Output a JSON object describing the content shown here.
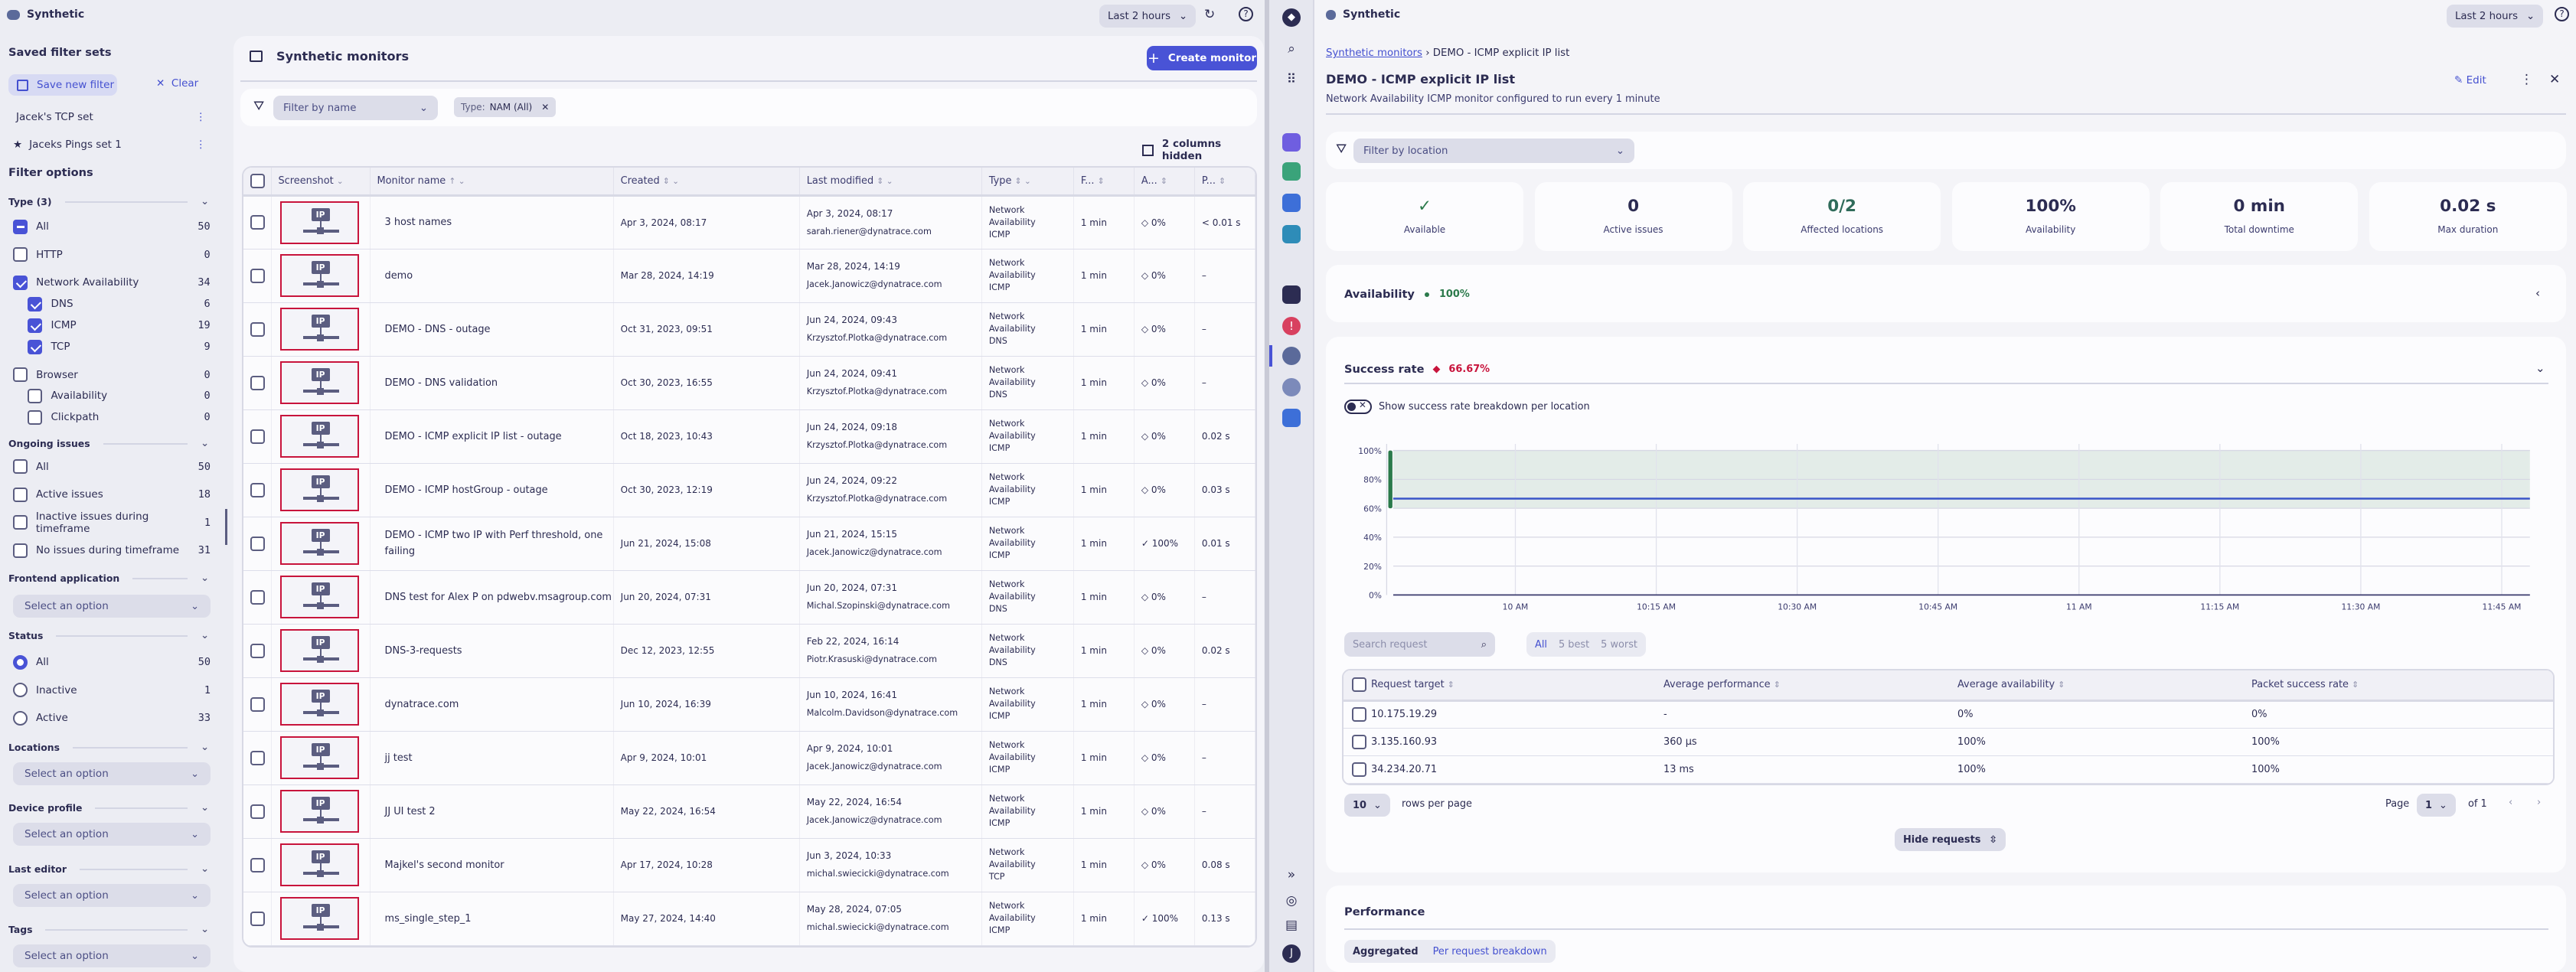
{
  "left_app": {
    "app_name": "Synthetic",
    "timeframe": "Last 2 hours",
    "sidebar": {
      "saved_title": "Saved filter sets",
      "save_new": "Save new filter",
      "clear": "Clear",
      "saved_sets": [
        {
          "label": "Jacek's TCP set",
          "starred": false
        },
        {
          "label": "Jaceks Pings set 1",
          "starred": true
        }
      ],
      "filter_options_title": "Filter options",
      "type_section": "Type (3)",
      "type_items": [
        {
          "label": "All",
          "count": "50",
          "state": "ind",
          "indent": 0
        },
        {
          "label": "HTTP",
          "count": "0",
          "state": "",
          "indent": 0
        },
        {
          "label": "Network Availability",
          "count": "34",
          "state": "on",
          "indent": 0
        },
        {
          "label": "DNS",
          "count": "6",
          "state": "on",
          "indent": 1
        },
        {
          "label": "ICMP",
          "count": "19",
          "state": "on",
          "indent": 1
        },
        {
          "label": "TCP",
          "count": "9",
          "state": "on",
          "indent": 1
        },
        {
          "label": "Browser",
          "count": "0",
          "state": "",
          "indent": 0
        },
        {
          "label": "Availability",
          "count": "0",
          "state": "",
          "indent": 1
        },
        {
          "label": "Clickpath",
          "count": "0",
          "state": "",
          "indent": 1
        }
      ],
      "issues_section": "Ongoing issues",
      "issue_items": [
        {
          "label": "All",
          "count": "50"
        },
        {
          "label": "Active issues",
          "count": "18"
        },
        {
          "label": "Inactive issues during timeframe",
          "count": "1"
        },
        {
          "label": "No issues during timeframe",
          "count": "31"
        }
      ],
      "frontend_section": "Frontend application",
      "select_placeholder": "Select an option",
      "status_section": "Status",
      "status_items": [
        {
          "label": "All",
          "count": "50",
          "selected": true
        },
        {
          "label": "Inactive",
          "count": "1",
          "selected": false
        },
        {
          "label": "Active",
          "count": "33",
          "selected": false
        }
      ],
      "locations_section": "Locations",
      "device_section": "Device profile",
      "editor_section": "Last editor",
      "tags_section": "Tags"
    },
    "main": {
      "title": "Synthetic monitors",
      "create_button": "Create monitor",
      "filter_placeholder": "Filter by name",
      "filter_chip_key": "Type:",
      "filter_chip_value": "NAM (All)",
      "columns_hidden": "2 columns hidden",
      "columns": [
        "Screenshot",
        "Monitor name",
        "Created",
        "Last modified",
        "Type",
        "F...",
        "A...",
        "P..."
      ],
      "rows": [
        {
          "name": "3 host names",
          "created": "Apr 3, 2024, 08:17",
          "modified": "Apr 3, 2024, 08:17",
          "editor": "sarah.riener@dynatrace.com",
          "type": [
            "Network",
            "Availability",
            "ICMP"
          ],
          "freq": "1 min",
          "avail": "0%",
          "avail_ok": false,
          "perf": "< 0.01 s"
        },
        {
          "name": "demo",
          "created": "Mar 28, 2024, 14:19",
          "modified": "Mar 28, 2024, 14:19",
          "editor": "Jacek.Janowicz@dynatrace.com",
          "type": [
            "Network",
            "Availability",
            "ICMP"
          ],
          "freq": "1 min",
          "avail": "0%",
          "avail_ok": false,
          "perf": "–"
        },
        {
          "name": "DEMO - DNS - outage",
          "created": "Oct 31, 2023, 09:51",
          "modified": "Jun 24, 2024, 09:43",
          "editor": "Krzysztof.Plotka@dynatrace.com",
          "type": [
            "Network",
            "Availability",
            "DNS"
          ],
          "freq": "1 min",
          "avail": "0%",
          "avail_ok": false,
          "perf": "–"
        },
        {
          "name": "DEMO - DNS validation",
          "created": "Oct 30, 2023, 16:55",
          "modified": "Jun 24, 2024, 09:41",
          "editor": "Krzysztof.Plotka@dynatrace.com",
          "type": [
            "Network",
            "Availability",
            "DNS"
          ],
          "freq": "1 min",
          "avail": "0%",
          "avail_ok": false,
          "perf": "–"
        },
        {
          "name": "DEMO - ICMP explicit IP list - outage",
          "created": "Oct 18, 2023, 10:43",
          "modified": "Jun 24, 2024, 09:18",
          "editor": "Krzysztof.Plotka@dynatrace.com",
          "type": [
            "Network",
            "Availability",
            "ICMP"
          ],
          "freq": "1 min",
          "avail": "0%",
          "avail_ok": false,
          "perf": "0.02 s"
        },
        {
          "name": "DEMO - ICMP hostGroup - outage",
          "created": "Oct 30, 2023, 12:19",
          "modified": "Jun 24, 2024, 09:22",
          "editor": "Krzysztof.Plotka@dynatrace.com",
          "type": [
            "Network",
            "Availability",
            "ICMP"
          ],
          "freq": "1 min",
          "avail": "0%",
          "avail_ok": false,
          "perf": "0.03 s"
        },
        {
          "name": "DEMO - ICMP two IP with Perf threshold, one failing",
          "created": "Jun 21, 2024, 15:08",
          "modified": "Jun 21, 2024, 15:15",
          "editor": "Jacek.Janowicz@dynatrace.com",
          "type": [
            "Network",
            "Availability",
            "ICMP"
          ],
          "freq": "1 min",
          "avail": "100%",
          "avail_ok": true,
          "perf": "0.01 s"
        },
        {
          "name": "DNS test for Alex P on pdwebv.msagroup.com",
          "created": "Jun 20, 2024, 07:31",
          "modified": "Jun 20, 2024, 07:31",
          "editor": "Michal.Szopinski@dynatrace.com",
          "type": [
            "Network",
            "Availability",
            "DNS"
          ],
          "freq": "1 min",
          "avail": "0%",
          "avail_ok": false,
          "perf": "–"
        },
        {
          "name": "DNS-3-requests",
          "created": "Dec 12, 2023, 12:55",
          "modified": "Feb 22, 2024, 16:14",
          "editor": "Piotr.Krasuski@dynatrace.com",
          "type": [
            "Network",
            "Availability",
            "DNS"
          ],
          "freq": "1 min",
          "avail": "0%",
          "avail_ok": false,
          "perf": "0.02 s"
        },
        {
          "name": "dynatrace.com",
          "created": "Jun 10, 2024, 16:39",
          "modified": "Jun 10, 2024, 16:41",
          "editor": "Malcolm.Davidson@dynatrace.com",
          "type": [
            "Network",
            "Availability",
            "ICMP"
          ],
          "freq": "1 min",
          "avail": "0%",
          "avail_ok": false,
          "perf": "–"
        },
        {
          "name": "jj test",
          "created": "Apr 9, 2024, 10:01",
          "modified": "Apr 9, 2024, 10:01",
          "editor": "Jacek.Janowicz@dynatrace.com",
          "type": [
            "Network",
            "Availability",
            "ICMP"
          ],
          "freq": "1 min",
          "avail": "0%",
          "avail_ok": false,
          "perf": "–"
        },
        {
          "name": "JJ UI test 2",
          "created": "May 22, 2024, 16:54",
          "modified": "May 22, 2024, 16:54",
          "editor": "Jacek.Janowicz@dynatrace.com",
          "type": [
            "Network",
            "Availability",
            "ICMP"
          ],
          "freq": "1 min",
          "avail": "0%",
          "avail_ok": false,
          "perf": "–"
        },
        {
          "name": "Majkel's second monitor",
          "created": "Apr 17, 2024, 10:28",
          "modified": "Jun 3, 2024, 10:33",
          "editor": "michal.swiecicki@dynatrace.com",
          "type": [
            "Network",
            "Availability",
            "TCP"
          ],
          "freq": "1 min",
          "avail": "0%",
          "avail_ok": false,
          "perf": "0.08 s"
        },
        {
          "name": "ms_single_step_1",
          "created": "May 27, 2024, 14:40",
          "modified": "May 28, 2024, 07:05",
          "editor": "michal.swiecicki@dynatrace.com",
          "type": [
            "Network",
            "Availability",
            "ICMP"
          ],
          "freq": "1 min",
          "avail": "100%",
          "avail_ok": true,
          "perf": "0.13 s"
        }
      ]
    }
  },
  "right_app": {
    "app_name": "Synthetic",
    "timeframe": "Last 2 hours",
    "breadcrumb": {
      "parent": "Synthetic monitors",
      "current": "DEMO - ICMP explicit IP list"
    },
    "title": "DEMO - ICMP explicit IP list",
    "description": "Network Availability ICMP monitor configured to run every 1 minute",
    "edit": "Edit",
    "location_filter_placeholder": "Filter by location",
    "kpis": [
      {
        "value": "✓",
        "label": "Available",
        "color": "#2b7a4b"
      },
      {
        "value": "0",
        "label": "Active issues",
        "color": "#2c2c52"
      },
      {
        "value": "0/2",
        "label": "Affected locations",
        "color": "#2f6b5a"
      },
      {
        "value": "100%",
        "label": "Availability",
        "color": "#2c2c52"
      },
      {
        "value": "0 min",
        "label": "Total downtime",
        "color": "#2c2c52"
      },
      {
        "value": "0.02 s",
        "label": "Max duration",
        "color": "#2c2c52"
      }
    ],
    "availability": {
      "label": "Availability",
      "value": "100%",
      "color": "#2b7a4b"
    },
    "success_rate": {
      "label": "Success rate",
      "value": "66.67%",
      "color": "#c8143c",
      "toggle_label": "Show success rate breakdown per location",
      "toggle_on": false
    },
    "requests": {
      "search_placeholder": "Search request",
      "segments": [
        "All",
        "5 best",
        "5 worst"
      ],
      "selected_segment": "All",
      "columns": [
        "Request target",
        "Average performance",
        "Average availability",
        "Packet success rate"
      ],
      "rows": [
        [
          "10.175.19.29",
          "-",
          "0%",
          "0%"
        ],
        [
          "3.135.160.93",
          "360 µs",
          "100%",
          "100%"
        ],
        [
          "34.234.20.71",
          "13 ms",
          "100%",
          "100%"
        ]
      ],
      "rows_per_page": "10",
      "rows_per_page_label": "rows per page",
      "page_label": "Page",
      "page": "1",
      "of_label": "of 1",
      "hide_button": "Hide requests"
    },
    "performance": {
      "title": "Performance",
      "tabs": [
        "Aggregated",
        "Per request breakdown"
      ],
      "selected_tab": "Aggregated"
    }
  },
  "chart_data": {
    "type": "line",
    "x_ticks": [
      "10 AM",
      "10:15 AM",
      "10:30 AM",
      "10:45 AM",
      "11 AM",
      "11:15 AM",
      "11:30 AM",
      "11:45 AM"
    ],
    "y_ticks": [
      "0%",
      "20%",
      "40%",
      "60%",
      "80%",
      "100%"
    ],
    "ylim": [
      0,
      100
    ],
    "xlim": [
      "09:47",
      "11:48"
    ],
    "grid": true,
    "threshold_band": [
      60,
      100
    ],
    "series": [
      {
        "x": [
          "09:47",
          "11:48"
        ],
        "values": [
          66.67,
          66.67
        ],
        "color": "#3a55c8"
      }
    ],
    "band_color": "#e3ece8",
    "marker_color": "#2b7a4b"
  }
}
